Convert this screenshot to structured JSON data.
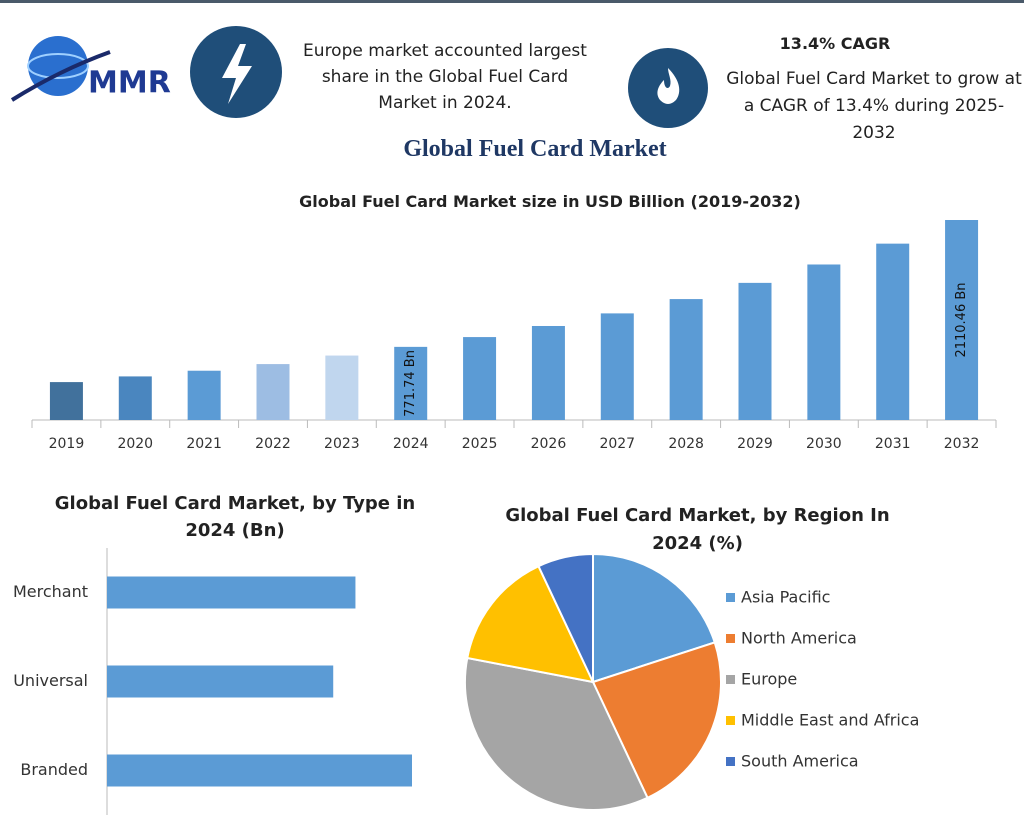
{
  "header": {
    "logo_text": "MMR",
    "left_note": "Europe market accounted largest share in the Global Fuel Card Market in 2024.",
    "cagr_title": "13.4% CAGR",
    "cagr_note": "Global Fuel Card Market to grow at a CAGR of 13.4% during 2025-2032"
  },
  "title": "Global Fuel Card Market",
  "chart_data": [
    {
      "type": "bar",
      "title": "Global Fuel Card Market size in USD Billion (2019-2032)",
      "categories": [
        "2019",
        "2020",
        "2021",
        "2022",
        "2023",
        "2024",
        "2025",
        "2026",
        "2027",
        "2028",
        "2029",
        "2030",
        "2031",
        "2032"
      ],
      "values": [
        400,
        460,
        520,
        590,
        680,
        771.74,
        875,
        992,
        1125,
        1276,
        1447,
        1641,
        1861,
        2110.46
      ],
      "value_labels": [
        null,
        null,
        null,
        null,
        null,
        "771.74 Bn",
        null,
        null,
        null,
        null,
        null,
        null,
        null,
        "2110.46 Bn"
      ],
      "colors": [
        "#41719c",
        "#4a86bf",
        "#5b9bd5",
        "#9dbde3",
        "#c0d6ee",
        "#5b9bd5",
        "#5b9bd5",
        "#5b9bd5",
        "#5b9bd5",
        "#5b9bd5",
        "#5b9bd5",
        "#5b9bd5",
        "#5b9bd5",
        "#5b9bd5"
      ]
    },
    {
      "type": "hbar",
      "title": "Global Fuel Card Market, by Type  in 2024 (Bn)",
      "categories": [
        "Merchant",
        "Universal",
        "Branded"
      ],
      "values": [
        246,
        224,
        302
      ],
      "color": "#5b9bd5"
    },
    {
      "type": "pie",
      "title": "Global Fuel Card Market, by Region In 2024 (%)",
      "categories": [
        "Asia Pacific",
        "North America",
        "Europe",
        "Middle East and Africa",
        "South America"
      ],
      "values": [
        20,
        23,
        35,
        15,
        7
      ],
      "colors": [
        "#5b9bd5",
        "#ed7d31",
        "#a5a5a5",
        "#ffc000",
        "#4472c4"
      ]
    }
  ]
}
